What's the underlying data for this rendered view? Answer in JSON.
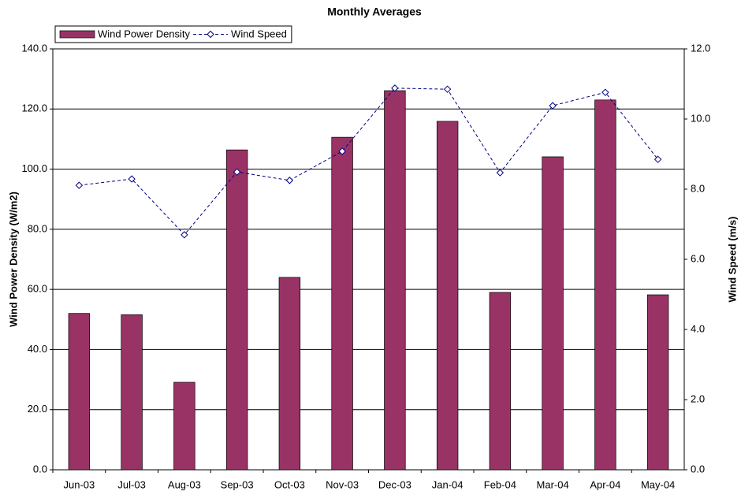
{
  "chart_data": {
    "type": "bar",
    "title": "Monthly Averages",
    "categories": [
      "Jun-03",
      "Jul-03",
      "Aug-03",
      "Sep-03",
      "Oct-03",
      "Nov-03",
      "Dec-03",
      "Jan-04",
      "Feb-04",
      "Mar-04",
      "Apr-04",
      "May-04"
    ],
    "series": [
      {
        "name": "Wind Power Density",
        "type": "bar",
        "color": "#993366",
        "values": [
          52.0,
          51.6,
          29.1,
          106.4,
          64.0,
          110.6,
          126.1,
          115.9,
          59.0,
          104.1,
          123.0,
          58.2
        ]
      },
      {
        "name": "Wind Speed",
        "type": "line",
        "axis": "y2",
        "color": "#000080",
        "values": [
          8.11,
          8.29,
          6.7,
          8.49,
          8.25,
          9.08,
          10.88,
          10.85,
          8.47,
          10.38,
          10.76,
          8.85
        ]
      }
    ],
    "ylabel": "Wind Power Density (W/m2)",
    "y2label": "Wind Speed (m/s)",
    "ylim": [
      0,
      140
    ],
    "yticks": [
      {
        "value": 0,
        "label": "0.0"
      },
      {
        "value": 20,
        "label": "20.0"
      },
      {
        "value": 40,
        "label": "40.0"
      },
      {
        "value": 60,
        "label": "60.0"
      },
      {
        "value": 80,
        "label": "80.0"
      },
      {
        "value": 100,
        "label": "100.0"
      },
      {
        "value": 120,
        "label": "120.0"
      },
      {
        "value": 140,
        "label": "140.0"
      }
    ],
    "y2lim": [
      0,
      12
    ],
    "y2ticks": [
      {
        "value": 0,
        "label": "0.0"
      },
      {
        "value": 2,
        "label": "2.0"
      },
      {
        "value": 4,
        "label": "4.0"
      },
      {
        "value": 6,
        "label": "6.0"
      },
      {
        "value": 8,
        "label": "8.0"
      },
      {
        "value": 10,
        "label": "10.0"
      },
      {
        "value": 12,
        "label": "12.0"
      }
    ],
    "grid": true,
    "legend": "top-left"
  }
}
